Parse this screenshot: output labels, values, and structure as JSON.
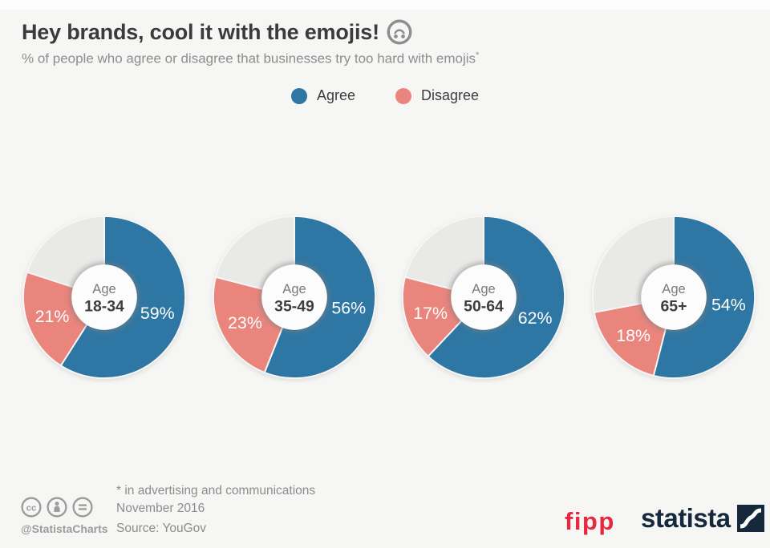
{
  "title": "Hey brands, cool it with the emojis!",
  "subtitle": "% of people who agree or disagree that businesses try too hard with emojis",
  "footnote_marker": "*",
  "icons": {
    "title_emoji": "upside-down-face",
    "license": [
      "creative-commons",
      "attribution-person",
      "no-derivatives-equals"
    ],
    "statista_mark": "statista-wave"
  },
  "legend": [
    {
      "label": "Agree",
      "color": "#2e76a3"
    },
    {
      "label": "Disagree",
      "color": "#ea857d"
    }
  ],
  "chart_data": {
    "type": "pie",
    "variant": "donut",
    "unit": "%",
    "title": "Hey brands, cool it with the emojis!",
    "subtitle": "% of people who agree or disagree that businesses try too hard with emojis*",
    "legend_position": "top-center",
    "series_colors": {
      "agree": "#2e76a3",
      "disagree": "#ea857d",
      "neutral": "#e9e9e7"
    },
    "groups": [
      {
        "label_line1": "Age",
        "label_line2": "18-34",
        "agree": 59,
        "disagree": 21,
        "neutral": 20
      },
      {
        "label_line1": "Age",
        "label_line2": "35-49",
        "agree": 56,
        "disagree": 23,
        "neutral": 21
      },
      {
        "label_line1": "Age",
        "label_line2": "50-64",
        "agree": 62,
        "disagree": 17,
        "neutral": 21
      },
      {
        "label_line1": "Age",
        "label_line2": "65+",
        "agree": 54,
        "disagree": 18,
        "neutral": 28
      }
    ]
  },
  "footer": {
    "footnote": "* in advertising and communications",
    "date": "November 2016",
    "source": "Source: YouGov",
    "credit": "@StatistaCharts",
    "brand_fipp": "fipp",
    "brand_statista": "statista"
  }
}
